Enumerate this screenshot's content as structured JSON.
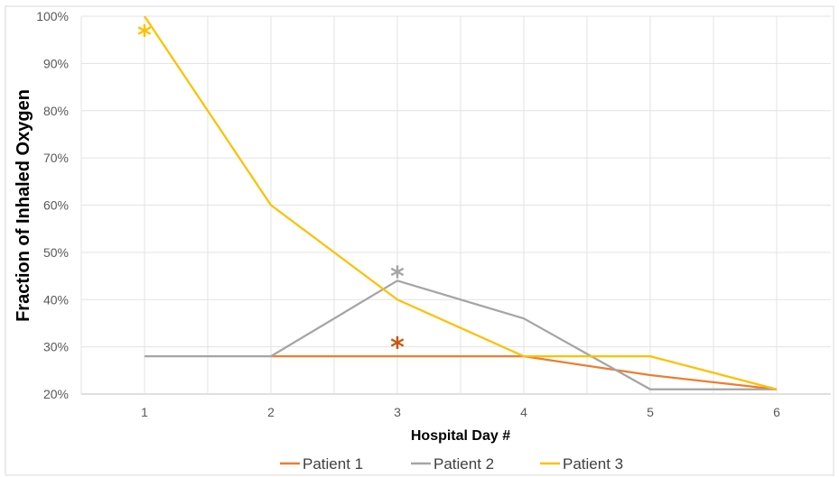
{
  "chart_data": {
    "type": "line",
    "xlabel": "Hospital Day #",
    "ylabel": "Fraction of Inhaled Oxygen",
    "x": [
      1,
      2,
      3,
      4,
      5,
      6
    ],
    "x_tick_labels": [
      "1",
      "2",
      "3",
      "4",
      "5",
      "6"
    ],
    "ylim": [
      0.2,
      1.0
    ],
    "y_tick_labels": [
      "20%",
      "30%",
      "40%",
      "50%",
      "60%",
      "70%",
      "80%",
      "90%",
      "100%"
    ],
    "grid": true,
    "legend_position": "bottom",
    "series": [
      {
        "name": "Patient 1",
        "color": "#ED7D31",
        "x": [
          2,
          3,
          4,
          5,
          6
        ],
        "values": [
          0.28,
          0.28,
          0.28,
          0.24,
          0.21
        ]
      },
      {
        "name": "Patient 2",
        "color": "#A5A5A5",
        "x": [
          1,
          2,
          3,
          4,
          5,
          6
        ],
        "values": [
          0.28,
          0.28,
          0.44,
          0.36,
          0.21,
          0.21
        ]
      },
      {
        "name": "Patient 3",
        "color": "#FFC000",
        "x": [
          1,
          2,
          3,
          4,
          5,
          6
        ],
        "values": [
          1.0,
          0.6,
          0.4,
          0.28,
          0.28,
          0.21
        ]
      }
    ],
    "annotations": [
      {
        "text": "*",
        "x": 1,
        "y": 0.97,
        "color": "#FFC000"
      },
      {
        "text": "*",
        "x": 3,
        "y": 0.46,
        "color": "#A5A5A5"
      },
      {
        "text": "*",
        "x": 3,
        "y": 0.31,
        "color": "#C55A11"
      }
    ]
  }
}
